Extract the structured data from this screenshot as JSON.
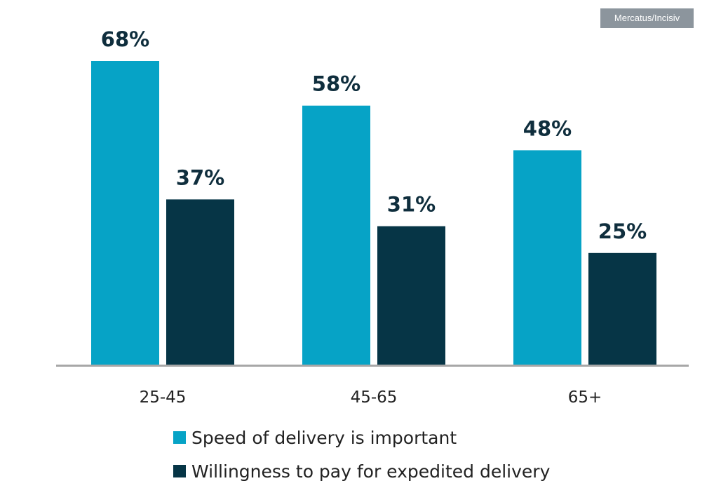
{
  "source_badge": "Mercatus/Incisiv",
  "colors": {
    "speed": "#06a3c6",
    "willingness": "#063546",
    "axis": "#a7a7a7",
    "label": "#0f2e3d",
    "tick": "#222222"
  },
  "chart_data": {
    "type": "bar",
    "title": "",
    "xlabel": "",
    "ylabel": "",
    "ylim": [
      0,
      68
    ],
    "grid": false,
    "legend_position": "bottom-center",
    "categories": [
      "25-45",
      "45-65",
      "65+"
    ],
    "series": [
      {
        "name": "Speed of delivery is important",
        "values": [
          68,
          58,
          48
        ],
        "labels": [
          "68%",
          "58%",
          "48%"
        ]
      },
      {
        "name": "Willingness to pay for expedited delivery",
        "values": [
          37,
          31,
          25
        ],
        "labels": [
          "37%",
          "31%",
          "25%"
        ]
      }
    ]
  }
}
